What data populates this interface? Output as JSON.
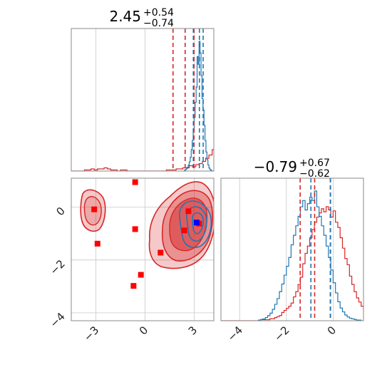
{
  "colors": {
    "red": "#d62728",
    "blue": "#1f77b4",
    "dark_red": "#b22222",
    "marker_red": "#ff0000",
    "marker_blue": "#0000ff"
  },
  "titles": [
    {
      "main": "2.45",
      "sup": "+0.54",
      "sub": "−0.74"
    },
    {
      "main": "−0.79",
      "sup": "+0.67",
      "sub": "−0.62"
    }
  ],
  "chart_data": [
    {
      "type": "histogram",
      "panel": "marginal-x",
      "xlim": [
        -4.5,
        4.2
      ],
      "xticks": [
        -3,
        0,
        3
      ],
      "grid": true,
      "red_quantiles": [
        1.71,
        2.45,
        2.99
      ],
      "blue_quantiles": [
        2.95,
        3.32,
        3.55
      ],
      "red_bins": {
        "start": -4.5,
        "width": 0.2,
        "counts": [
          0,
          0,
          0,
          0,
          1,
          1,
          2,
          1,
          2,
          2,
          3,
          2,
          1,
          1,
          0,
          1,
          1,
          0,
          0,
          0,
          0,
          0,
          0,
          0,
          0,
          0,
          0,
          0,
          0,
          1,
          1,
          1,
          2,
          2,
          3,
          3,
          5,
          4,
          6,
          7,
          9,
          12,
          15,
          20,
          28,
          40,
          52,
          60,
          68,
          50,
          36,
          18,
          10,
          5,
          3,
          2,
          1,
          1,
          0,
          0,
          0,
          0,
          0,
          0,
          0,
          0,
          0,
          0,
          0,
          0,
          0,
          0,
          0
        ]
      },
      "blue_bins": {
        "start": 2.4,
        "width": 0.06,
        "counts": [
          1,
          2,
          3,
          5,
          8,
          12,
          18,
          28,
          40,
          55,
          70,
          90,
          110,
          150,
          140,
          170,
          155,
          125,
          95,
          80,
          60,
          40,
          25,
          15,
          8,
          4,
          2,
          1
        ]
      }
    },
    {
      "type": "scatter",
      "panel": "joint",
      "xlim": [
        -4.5,
        4.2
      ],
      "ylim": [
        -4.3,
        1.1
      ],
      "xticks": [
        -3,
        0,
        3
      ],
      "yticks": [
        -4,
        -2,
        0
      ],
      "grid": true,
      "red_squares": [
        [
          -3.1,
          -0.08
        ],
        [
          -2.9,
          -1.38
        ],
        [
          -0.6,
          0.95
        ],
        [
          -0.6,
          -0.83
        ],
        [
          0.95,
          -1.72
        ],
        [
          -0.25,
          -2.56
        ],
        [
          -0.7,
          -2.98
        ],
        [
          2.4,
          -0.88
        ],
        [
          2.65,
          -0.15
        ],
        [
          3.3,
          -0.62
        ]
      ],
      "blue_squares": [
        [
          3.15,
          -0.58
        ]
      ]
    },
    {
      "type": "histogram",
      "panel": "marginal-y",
      "xlim": [
        -4.8,
        1.3
      ],
      "xticks": [
        -4,
        -2,
        0
      ],
      "grid": true,
      "red_quantiles": [
        -1.41,
        -0.79,
        -0.12
      ],
      "blue_quantiles": [
        -0.95,
        -0.11
      ],
      "red_bins": {
        "start": -4.8,
        "width": 0.1,
        "counts": [
          0,
          0,
          0,
          0,
          0,
          0,
          0,
          0,
          0,
          0,
          0,
          0,
          0,
          0,
          0,
          0,
          0,
          1,
          1,
          1,
          1,
          2,
          2,
          3,
          4,
          5,
          8,
          10,
          12,
          14,
          17,
          23,
          28,
          35,
          42,
          55,
          65,
          72,
          80,
          88,
          95,
          100,
          104,
          108,
          105,
          110,
          107,
          100,
          106,
          95,
          90,
          80,
          70,
          60,
          54,
          43,
          35,
          28,
          22,
          18,
          14,
          11,
          8,
          6,
          4,
          3,
          2,
          2,
          1,
          1,
          0
        ]
      },
      "blue_bins": {
        "start": -3.2,
        "width": 0.1,
        "counts": [
          1,
          2,
          3,
          5,
          8,
          12,
          18,
          26,
          35,
          46,
          58,
          72,
          86,
          100,
          120,
          135,
          150,
          165,
          180,
          190,
          175,
          185,
          195,
          190,
          205,
          180,
          165,
          150,
          135,
          118,
          100,
          80,
          60,
          44,
          30,
          20,
          14,
          9,
          6,
          4,
          3,
          2,
          1,
          1
        ]
      }
    }
  ]
}
